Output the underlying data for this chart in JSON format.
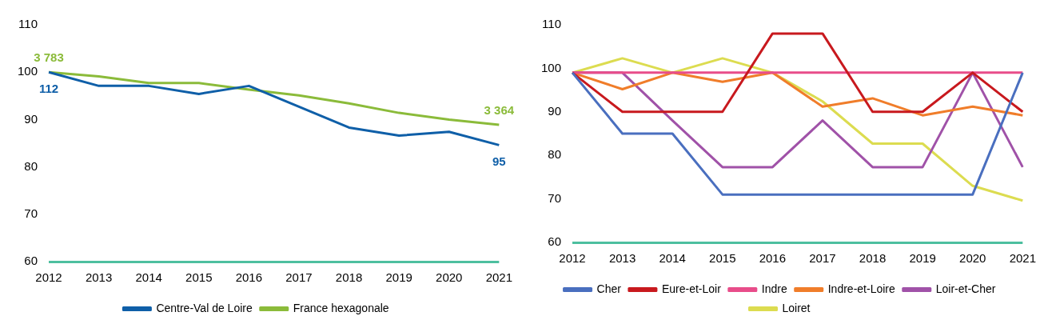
{
  "chart_data": [
    {
      "type": "line",
      "categories": [
        "2012",
        "2013",
        "2014",
        "2015",
        "2016",
        "2017",
        "2018",
        "2019",
        "2020",
        "2021"
      ],
      "ylim": [
        60,
        110
      ],
      "yticks": [
        60,
        70,
        80,
        90,
        100,
        110
      ],
      "grid": false,
      "legend": "bottom",
      "series": [
        {
          "name": "Centre-Val de Loire",
          "color": "#0f5fa8",
          "values": [
            100,
            97.1,
            97.1,
            95.4,
            97.1,
            92.7,
            88.3,
            86.6,
            87.4,
            84.6
          ]
        },
        {
          "name": "France hexagonale",
          "color": "#8bbb3a",
          "values": [
            100,
            99.1,
            97.7,
            97.7,
            96.3,
            95.1,
            93.4,
            91.4,
            90,
            88.9
          ]
        }
      ],
      "annotations": [
        {
          "text": "3 783",
          "x": "2012",
          "y": 100
        },
        {
          "text": "112",
          "x": "2012",
          "y": 100
        },
        {
          "text": "3 364",
          "x": "2021",
          "y": 88.9
        },
        {
          "text": "95",
          "x": "2021",
          "y": 84.6
        }
      ]
    },
    {
      "type": "line",
      "categories": [
        "2012",
        "2013",
        "2014",
        "2015",
        "2016",
        "2017",
        "2018",
        "2019",
        "2020",
        "2021"
      ],
      "ylim": [
        60,
        110
      ],
      "yticks": [
        60,
        70,
        80,
        90,
        100,
        110
      ],
      "grid": false,
      "legend": "bottom",
      "series": [
        {
          "name": "Cher",
          "color": "#4a6fbf",
          "values": [
            99,
            85,
            85,
            71,
            71,
            71,
            71,
            71,
            71,
            99
          ]
        },
        {
          "name": "Eure-et-Loir",
          "color": "#c8191e",
          "values": [
            99,
            90,
            90,
            90,
            108,
            108,
            90,
            90,
            99,
            90
          ]
        },
        {
          "name": "Indre",
          "color": "#e84d8a",
          "values": [
            99,
            99,
            99,
            99,
            99,
            99,
            99,
            99,
            99,
            99
          ]
        },
        {
          "name": "Indre-et-Loire",
          "color": "#f07d2a",
          "values": [
            99,
            95.2,
            99,
            96.9,
            99,
            91.2,
            93.1,
            89.2,
            91.2,
            89.2
          ]
        },
        {
          "name": "Loir-et-Cher",
          "color": "#a052a8",
          "values": [
            99,
            99,
            88,
            77.3,
            77.3,
            88,
            77.3,
            77.3,
            99,
            77.3
          ]
        },
        {
          "name": "Loiret",
          "color": "#dcdc50",
          "values": [
            99,
            102.3,
            99,
            102.3,
            99,
            92.4,
            82.7,
            82.7,
            73,
            69.6
          ]
        }
      ]
    }
  ]
}
